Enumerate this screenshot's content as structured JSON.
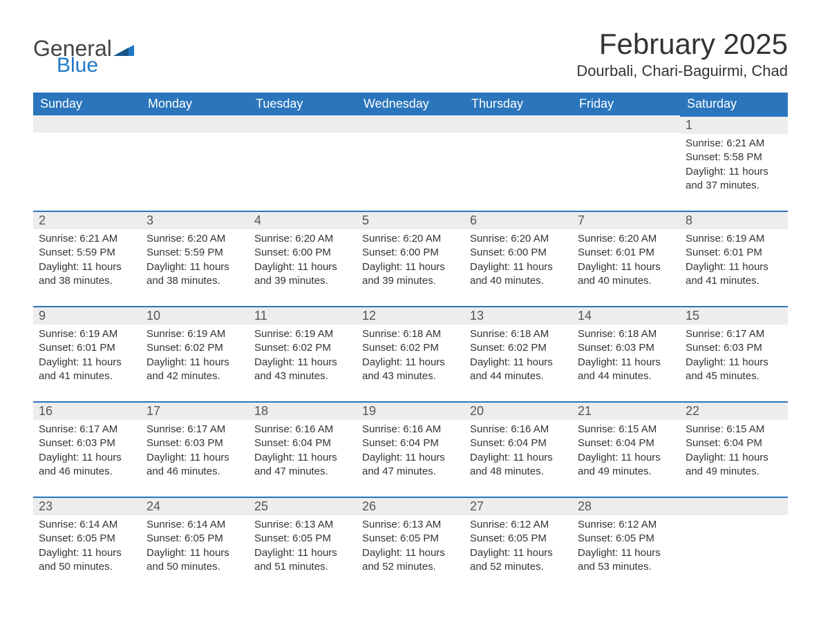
{
  "logo": {
    "word1": "General",
    "word2": "Blue"
  },
  "title": "February 2025",
  "location": "Dourbali, Chari-Baguirmi, Chad",
  "colors": {
    "header_bg": "#2a75bb",
    "header_text": "#ffffff",
    "daynum_bg": "#ededed",
    "daynum_border": "#2a75bb",
    "text": "#333333",
    "logo_blue": "#1f78c6"
  },
  "weekdays": [
    "Sunday",
    "Monday",
    "Tuesday",
    "Wednesday",
    "Thursday",
    "Friday",
    "Saturday"
  ],
  "weeks": [
    [
      null,
      null,
      null,
      null,
      null,
      null,
      {
        "d": "1",
        "sunrise": "Sunrise: 6:21 AM",
        "sunset": "Sunset: 5:58 PM",
        "daylight": "Daylight: 11 hours and 37 minutes."
      }
    ],
    [
      {
        "d": "2",
        "sunrise": "Sunrise: 6:21 AM",
        "sunset": "Sunset: 5:59 PM",
        "daylight": "Daylight: 11 hours and 38 minutes."
      },
      {
        "d": "3",
        "sunrise": "Sunrise: 6:20 AM",
        "sunset": "Sunset: 5:59 PM",
        "daylight": "Daylight: 11 hours and 38 minutes."
      },
      {
        "d": "4",
        "sunrise": "Sunrise: 6:20 AM",
        "sunset": "Sunset: 6:00 PM",
        "daylight": "Daylight: 11 hours and 39 minutes."
      },
      {
        "d": "5",
        "sunrise": "Sunrise: 6:20 AM",
        "sunset": "Sunset: 6:00 PM",
        "daylight": "Daylight: 11 hours and 39 minutes."
      },
      {
        "d": "6",
        "sunrise": "Sunrise: 6:20 AM",
        "sunset": "Sunset: 6:00 PM",
        "daylight": "Daylight: 11 hours and 40 minutes."
      },
      {
        "d": "7",
        "sunrise": "Sunrise: 6:20 AM",
        "sunset": "Sunset: 6:01 PM",
        "daylight": "Daylight: 11 hours and 40 minutes."
      },
      {
        "d": "8",
        "sunrise": "Sunrise: 6:19 AM",
        "sunset": "Sunset: 6:01 PM",
        "daylight": "Daylight: 11 hours and 41 minutes."
      }
    ],
    [
      {
        "d": "9",
        "sunrise": "Sunrise: 6:19 AM",
        "sunset": "Sunset: 6:01 PM",
        "daylight": "Daylight: 11 hours and 41 minutes."
      },
      {
        "d": "10",
        "sunrise": "Sunrise: 6:19 AM",
        "sunset": "Sunset: 6:02 PM",
        "daylight": "Daylight: 11 hours and 42 minutes."
      },
      {
        "d": "11",
        "sunrise": "Sunrise: 6:19 AM",
        "sunset": "Sunset: 6:02 PM",
        "daylight": "Daylight: 11 hours and 43 minutes."
      },
      {
        "d": "12",
        "sunrise": "Sunrise: 6:18 AM",
        "sunset": "Sunset: 6:02 PM",
        "daylight": "Daylight: 11 hours and 43 minutes."
      },
      {
        "d": "13",
        "sunrise": "Sunrise: 6:18 AM",
        "sunset": "Sunset: 6:02 PM",
        "daylight": "Daylight: 11 hours and 44 minutes."
      },
      {
        "d": "14",
        "sunrise": "Sunrise: 6:18 AM",
        "sunset": "Sunset: 6:03 PM",
        "daylight": "Daylight: 11 hours and 44 minutes."
      },
      {
        "d": "15",
        "sunrise": "Sunrise: 6:17 AM",
        "sunset": "Sunset: 6:03 PM",
        "daylight": "Daylight: 11 hours and 45 minutes."
      }
    ],
    [
      {
        "d": "16",
        "sunrise": "Sunrise: 6:17 AM",
        "sunset": "Sunset: 6:03 PM",
        "daylight": "Daylight: 11 hours and 46 minutes."
      },
      {
        "d": "17",
        "sunrise": "Sunrise: 6:17 AM",
        "sunset": "Sunset: 6:03 PM",
        "daylight": "Daylight: 11 hours and 46 minutes."
      },
      {
        "d": "18",
        "sunrise": "Sunrise: 6:16 AM",
        "sunset": "Sunset: 6:04 PM",
        "daylight": "Daylight: 11 hours and 47 minutes."
      },
      {
        "d": "19",
        "sunrise": "Sunrise: 6:16 AM",
        "sunset": "Sunset: 6:04 PM",
        "daylight": "Daylight: 11 hours and 47 minutes."
      },
      {
        "d": "20",
        "sunrise": "Sunrise: 6:16 AM",
        "sunset": "Sunset: 6:04 PM",
        "daylight": "Daylight: 11 hours and 48 minutes."
      },
      {
        "d": "21",
        "sunrise": "Sunrise: 6:15 AM",
        "sunset": "Sunset: 6:04 PM",
        "daylight": "Daylight: 11 hours and 49 minutes."
      },
      {
        "d": "22",
        "sunrise": "Sunrise: 6:15 AM",
        "sunset": "Sunset: 6:04 PM",
        "daylight": "Daylight: 11 hours and 49 minutes."
      }
    ],
    [
      {
        "d": "23",
        "sunrise": "Sunrise: 6:14 AM",
        "sunset": "Sunset: 6:05 PM",
        "daylight": "Daylight: 11 hours and 50 minutes."
      },
      {
        "d": "24",
        "sunrise": "Sunrise: 6:14 AM",
        "sunset": "Sunset: 6:05 PM",
        "daylight": "Daylight: 11 hours and 50 minutes."
      },
      {
        "d": "25",
        "sunrise": "Sunrise: 6:13 AM",
        "sunset": "Sunset: 6:05 PM",
        "daylight": "Daylight: 11 hours and 51 minutes."
      },
      {
        "d": "26",
        "sunrise": "Sunrise: 6:13 AM",
        "sunset": "Sunset: 6:05 PM",
        "daylight": "Daylight: 11 hours and 52 minutes."
      },
      {
        "d": "27",
        "sunrise": "Sunrise: 6:12 AM",
        "sunset": "Sunset: 6:05 PM",
        "daylight": "Daylight: 11 hours and 52 minutes."
      },
      {
        "d": "28",
        "sunrise": "Sunrise: 6:12 AM",
        "sunset": "Sunset: 6:05 PM",
        "daylight": "Daylight: 11 hours and 53 minutes."
      },
      null
    ]
  ]
}
